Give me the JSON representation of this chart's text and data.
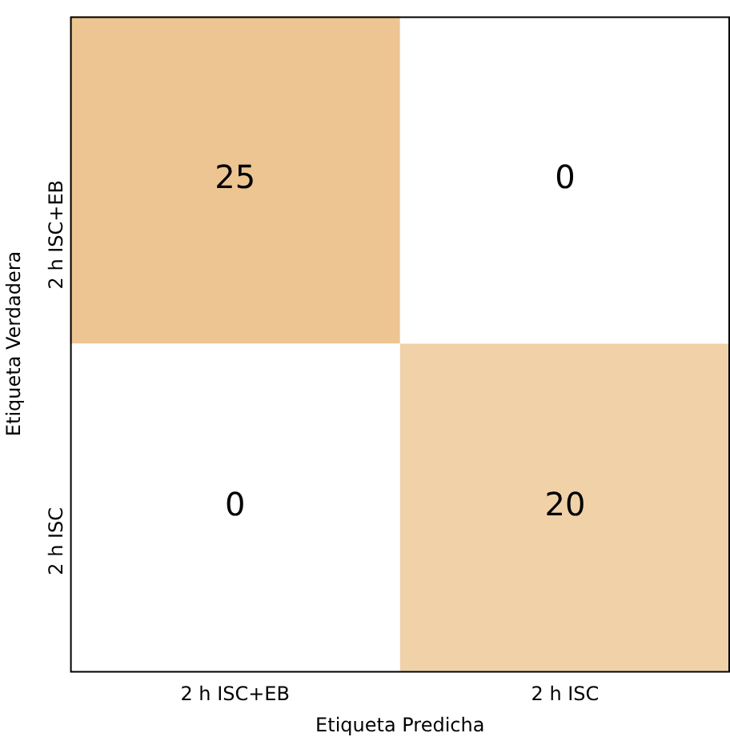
{
  "chart_data": {
    "type": "heatmap",
    "xlabel": "Etiqueta Predicha",
    "ylabel": "Etiqueta Verdadera",
    "categories": [
      "2 h ISC+EB",
      "2 h ISC"
    ],
    "y_categories": [
      "2 h ISC+EB",
      "2 h ISC"
    ],
    "cells": [
      [
        25,
        0
      ],
      [
        0,
        20
      ]
    ],
    "data_labels": true
  }
}
